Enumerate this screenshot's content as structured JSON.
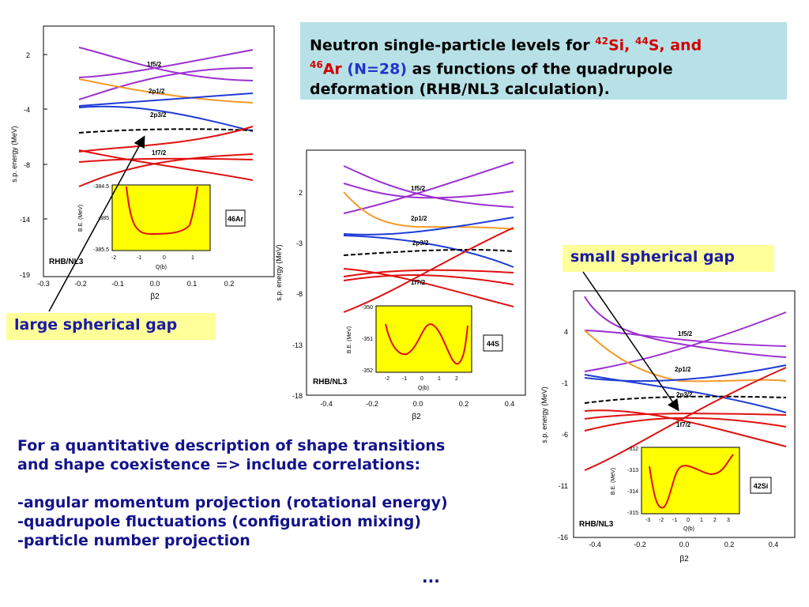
{
  "title": {
    "prefix": "Neutron single-particle levels for ",
    "sup42": "42",
    "si": "Si, ",
    "sup44": "44",
    "s": "S, and",
    "sup46": "46",
    "ar": "Ar",
    "n28": "(N=28)",
    "line_rest": " as functions of the quadrupole",
    "line3": "deformation  (RHB/NL3 calculation)."
  },
  "callouts": {
    "large": "large spherical gap",
    "small": "small spherical gap"
  },
  "body": {
    "line1": "For a quantitative description of shape transitions",
    "line2": "and shape coexistence => include correlations:",
    "item1": "-angular momentum projection (rotational energy)",
    "item2": "-quadrupole fluctuations (configuration mixing)",
    "item3": "-particle number projection",
    "ellipsis": "..."
  },
  "chart_data": [
    {
      "type": "line",
      "nucleus": "46Ar",
      "model_label": "RHB/NL3",
      "ylabel": "s.p. energy (MeV)",
      "xlabel": "β2",
      "xlim": [
        -0.3,
        0.3
      ],
      "ylim": [
        -19,
        5
      ],
      "xticks": [
        "-0.3",
        "-0.2",
        "-0.1",
        "0.0",
        "0.1",
        "0.2"
      ],
      "yticks": [
        "2",
        "-4",
        "-8",
        "-14",
        "-19"
      ],
      "level_labels": [
        "1f5/2",
        "2p1/2",
        "2p3/2",
        "1f7/2"
      ],
      "inset": {
        "ylabel": "B.E. (MeV)",
        "xlabel": "Q(b)",
        "yticks": [
          "-384.5",
          "-385",
          "-385.5"
        ],
        "xticks": [
          "-2",
          "-1",
          "0",
          "1"
        ]
      }
    },
    {
      "type": "line",
      "nucleus": "44S",
      "model_label": "RHB/NL3",
      "ylabel": "s.p. energy (MeV)",
      "xlabel": "β2",
      "xlim": [
        -0.4,
        0.4
      ],
      "ylim": [
        -18,
        5
      ],
      "xticks": [
        "-0.4",
        "-0.2",
        "0.0",
        "0.2",
        "0.4"
      ],
      "yticks": [
        "2",
        "-3",
        "-8",
        "-13",
        "-18"
      ],
      "level_labels": [
        "1f5/2",
        "2p1/2",
        "2p3/2",
        "1f7/2"
      ],
      "inset": {
        "ylabel": "B.E. (MeV)",
        "xlabel": "Q(b)",
        "yticks": [
          "-350",
          "-351",
          "-352"
        ],
        "xticks": [
          "-2",
          "-1",
          "0",
          "1",
          "2"
        ]
      }
    },
    {
      "type": "line",
      "nucleus": "42Si",
      "model_label": "RHB/NL3",
      "ylabel": "s.p. energy (MeV)",
      "xlabel": "β2",
      "xlim": [
        -0.4,
        0.4
      ],
      "ylim": [
        -16,
        7
      ],
      "xticks": [
        "-0.4",
        "-0.2",
        "0.0",
        "0.2",
        "0.4"
      ],
      "yticks": [
        "4",
        "-1",
        "-6",
        "-11",
        "-16"
      ],
      "level_labels": [
        "1f5/2",
        "2p1/2",
        "2p3/2",
        "1f7/2"
      ],
      "inset": {
        "ylabel": "B.E. (MeV)",
        "xlabel": "Q(b)",
        "yticks": [
          "-312",
          "-313",
          "-314",
          "-315"
        ],
        "xticks": [
          "-3",
          "-2",
          "-1",
          "0",
          "1",
          "2",
          "3"
        ]
      }
    }
  ]
}
